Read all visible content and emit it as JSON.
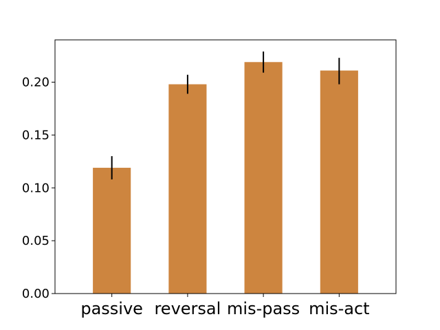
{
  "chart_data": {
    "type": "bar",
    "title": "",
    "xlabel": "",
    "ylabel": "",
    "categories": [
      "passive",
      "reversal",
      "mis-pass",
      "mis-act"
    ],
    "values": [
      0.119,
      0.198,
      0.219,
      0.211
    ],
    "error": [
      [
        0.108,
        0.13
      ],
      [
        0.189,
        0.207
      ],
      [
        0.209,
        0.229
      ],
      [
        0.198,
        0.223
      ]
    ],
    "ylim": [
      0,
      0.24
    ],
    "yticks": [
      0.0,
      0.05,
      0.1,
      0.15,
      0.2
    ],
    "ytick_labels": [
      "0.00",
      "0.05",
      "0.10",
      "0.15",
      "0.20"
    ],
    "bar_color": "#cd853f",
    "errorbar_color": "#000000",
    "grid": false,
    "legend": false
  }
}
